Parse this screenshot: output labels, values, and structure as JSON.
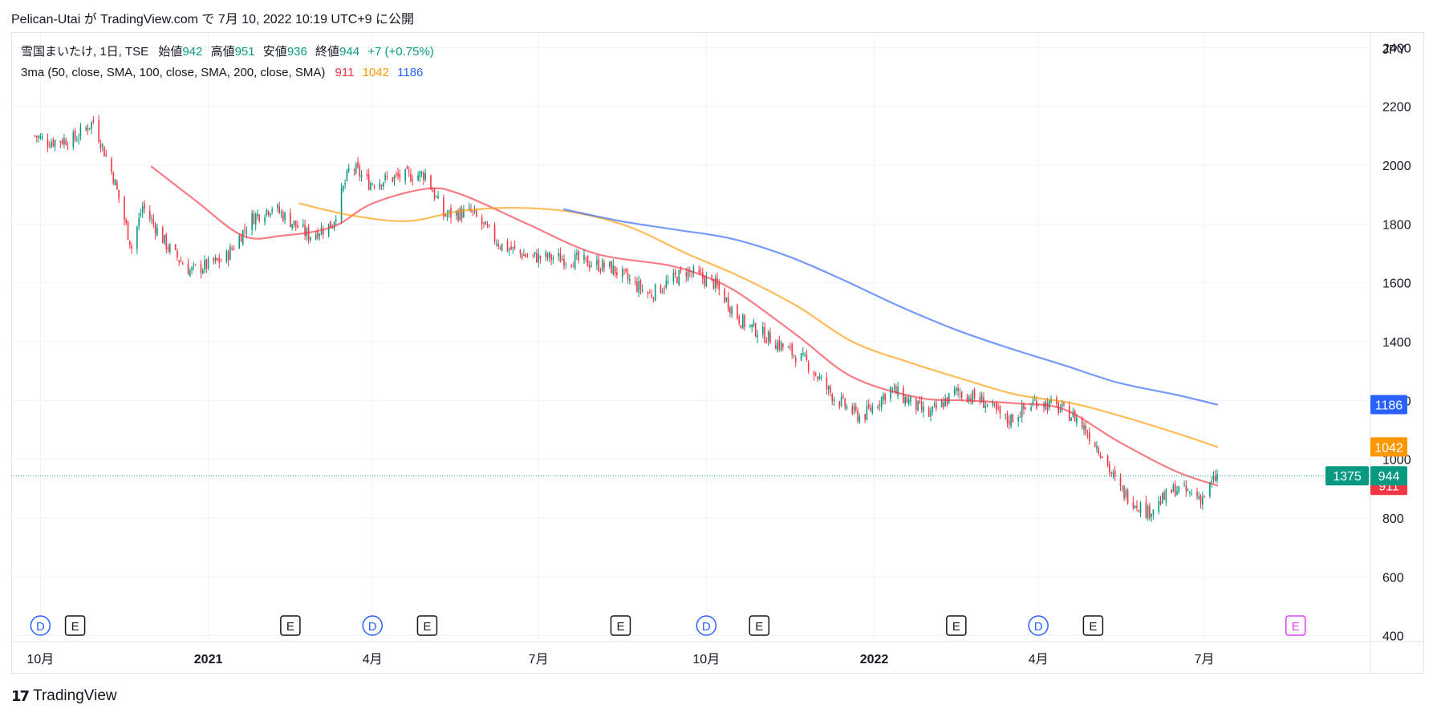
{
  "header": {
    "text": "Pelican-Utai が TradingView.com で 7月 10, 2022 10:19 UTC+9 に公開"
  },
  "legend": {
    "symbol": "雪国まいたけ, 1日, TSE",
    "open_label": "始値",
    "open": "942",
    "high_label": "高値",
    "high": "951",
    "low_label": "安値",
    "low": "936",
    "close_label": "終値",
    "close": "944",
    "change": "+7 (+0.75%)",
    "ma_label": "3ma (50, close, SMA, 100, close, SMA, 200, close, SMA)",
    "ma50": "911",
    "ma100": "1042",
    "ma200": "1186"
  },
  "footer": {
    "brand": "TradingView",
    "logo": "17"
  },
  "colors": {
    "up": "#089981",
    "down": "#f23645",
    "ma50": "#f23645",
    "ma100": "#ff9800",
    "ma200": "#2962ff",
    "grid": "#f0f3fa",
    "axis": "#131722"
  },
  "chart_data": {
    "type": "candlestick",
    "currency": "JPY",
    "ylim": [
      380,
      2450
    ],
    "yticks": [
      400,
      600,
      800,
      1000,
      1200,
      1400,
      1600,
      1800,
      2000,
      2200,
      2400
    ],
    "date_range": [
      "2020-09-15",
      "2022-09-30"
    ],
    "xticks": [
      {
        "date": "2020-10-01",
        "label": "10月",
        "bold": false
      },
      {
        "date": "2021-01-01",
        "label": "2021",
        "bold": true
      },
      {
        "date": "2021-04-01",
        "label": "4月",
        "bold": false
      },
      {
        "date": "2021-07-01",
        "label": "7月",
        "bold": false
      },
      {
        "date": "2021-10-01",
        "label": "10月",
        "bold": false
      },
      {
        "date": "2022-01-01",
        "label": "2022",
        "bold": true
      },
      {
        "date": "2022-04-01",
        "label": "4月",
        "bold": false
      },
      {
        "date": "2022-07-01",
        "label": "7月",
        "bold": false
      }
    ],
    "price_path": [
      [
        "2020-09-28",
        2100
      ],
      [
        "2020-10-05",
        2080
      ],
      [
        "2020-10-20",
        2090
      ],
      [
        "2020-10-30",
        2150
      ],
      [
        "2020-11-10",
        1960
      ],
      [
        "2020-11-20",
        1720
      ],
      [
        "2020-11-26",
        1860
      ],
      [
        "2020-12-10",
        1720
      ],
      [
        "2020-12-22",
        1640
      ],
      [
        "2021-01-10",
        1680
      ],
      [
        "2021-01-25",
        1820
      ],
      [
        "2021-02-05",
        1860
      ],
      [
        "2021-02-25",
        1760
      ],
      [
        "2021-03-10",
        1800
      ],
      [
        "2021-03-20",
        2000
      ],
      [
        "2021-03-30",
        1940
      ],
      [
        "2021-04-15",
        1960
      ],
      [
        "2021-04-30",
        1970
      ],
      [
        "2021-05-10",
        1830
      ],
      [
        "2021-05-25",
        1840
      ],
      [
        "2021-06-10",
        1730
      ],
      [
        "2021-06-25",
        1690
      ],
      [
        "2021-07-20",
        1680
      ],
      [
        "2021-08-10",
        1650
      ],
      [
        "2021-08-31",
        1560
      ],
      [
        "2021-09-20",
        1640
      ],
      [
        "2021-10-05",
        1600
      ],
      [
        "2021-10-20",
        1470
      ],
      [
        "2021-11-05",
        1410
      ],
      [
        "2021-11-25",
        1330
      ],
      [
        "2021-12-10",
        1210
      ],
      [
        "2021-12-25",
        1140
      ],
      [
        "2022-01-10",
        1240
      ],
      [
        "2022-01-31",
        1150
      ],
      [
        "2022-02-15",
        1230
      ],
      [
        "2022-03-01",
        1200
      ],
      [
        "2022-03-15",
        1130
      ],
      [
        "2022-03-31",
        1200
      ],
      [
        "2022-04-10",
        1180
      ],
      [
        "2022-04-22",
        1140
      ],
      [
        "2022-05-05",
        1030
      ],
      [
        "2022-05-15",
        900
      ],
      [
        "2022-05-31",
        820
      ],
      [
        "2022-06-15",
        900
      ],
      [
        "2022-06-30",
        870
      ],
      [
        "2022-07-08",
        944
      ]
    ],
    "moving_averages": [
      {
        "name": "SMA 50",
        "value": "911",
        "color": "#f23645",
        "points": [
          [
            "2020-12-01",
            1995
          ],
          [
            "2020-12-25",
            1880
          ],
          [
            "2021-01-20",
            1760
          ],
          [
            "2021-02-10",
            1760
          ],
          [
            "2021-03-10",
            1790
          ],
          [
            "2021-04-01",
            1870
          ],
          [
            "2021-05-01",
            1920
          ],
          [
            "2021-05-20",
            1900
          ],
          [
            "2021-06-25",
            1800
          ],
          [
            "2021-08-01",
            1700
          ],
          [
            "2021-09-10",
            1660
          ],
          [
            "2021-10-01",
            1620
          ],
          [
            "2021-10-20",
            1560
          ],
          [
            "2021-11-20",
            1420
          ],
          [
            "2021-12-20",
            1280
          ],
          [
            "2022-01-25",
            1210
          ],
          [
            "2022-02-20",
            1200
          ],
          [
            "2022-03-20",
            1190
          ],
          [
            "2022-04-15",
            1170
          ],
          [
            "2022-05-15",
            1060
          ],
          [
            "2022-06-15",
            960
          ],
          [
            "2022-07-08",
            911
          ]
        ]
      },
      {
        "name": "SMA 100",
        "value": "1042",
        "color": "#ff9800",
        "points": [
          [
            "2021-02-20",
            1870
          ],
          [
            "2021-03-20",
            1830
          ],
          [
            "2021-04-20",
            1810
          ],
          [
            "2021-05-20",
            1845
          ],
          [
            "2021-06-20",
            1855
          ],
          [
            "2021-07-20",
            1840
          ],
          [
            "2021-08-20",
            1790
          ],
          [
            "2021-09-20",
            1700
          ],
          [
            "2021-10-20",
            1620
          ],
          [
            "2021-11-20",
            1520
          ],
          [
            "2021-12-20",
            1400
          ],
          [
            "2022-01-20",
            1330
          ],
          [
            "2022-02-20",
            1270
          ],
          [
            "2022-03-20",
            1220
          ],
          [
            "2022-04-20",
            1190
          ],
          [
            "2022-05-20",
            1140
          ],
          [
            "2022-06-20",
            1080
          ],
          [
            "2022-07-08",
            1042
          ]
        ]
      },
      {
        "name": "SMA 200",
        "value": "1186",
        "color": "#2962ff",
        "points": [
          [
            "2021-07-15",
            1850
          ],
          [
            "2021-08-15",
            1810
          ],
          [
            "2021-09-15",
            1780
          ],
          [
            "2021-10-15",
            1750
          ],
          [
            "2021-11-15",
            1690
          ],
          [
            "2021-12-15",
            1610
          ],
          [
            "2022-01-15",
            1520
          ],
          [
            "2022-02-15",
            1440
          ],
          [
            "2022-03-15",
            1380
          ],
          [
            "2022-04-15",
            1320
          ],
          [
            "2022-05-15",
            1260
          ],
          [
            "2022-06-15",
            1220
          ],
          [
            "2022-07-08",
            1186
          ]
        ]
      }
    ],
    "last_price": {
      "value": "944",
      "countdown": "1375"
    },
    "events": [
      {
        "date": "2020-10-01",
        "type": "D"
      },
      {
        "date": "2020-10-20",
        "type": "E"
      },
      {
        "date": "2021-02-15",
        "type": "E"
      },
      {
        "date": "2021-04-01",
        "type": "D"
      },
      {
        "date": "2021-05-01",
        "type": "E"
      },
      {
        "date": "2021-08-15",
        "type": "E"
      },
      {
        "date": "2021-10-01",
        "type": "D"
      },
      {
        "date": "2021-10-30",
        "type": "E"
      },
      {
        "date": "2022-02-15",
        "type": "E"
      },
      {
        "date": "2022-04-01",
        "type": "D"
      },
      {
        "date": "2022-05-01",
        "type": "E"
      },
      {
        "date": "2022-08-20",
        "type": "E",
        "future": true
      }
    ]
  }
}
